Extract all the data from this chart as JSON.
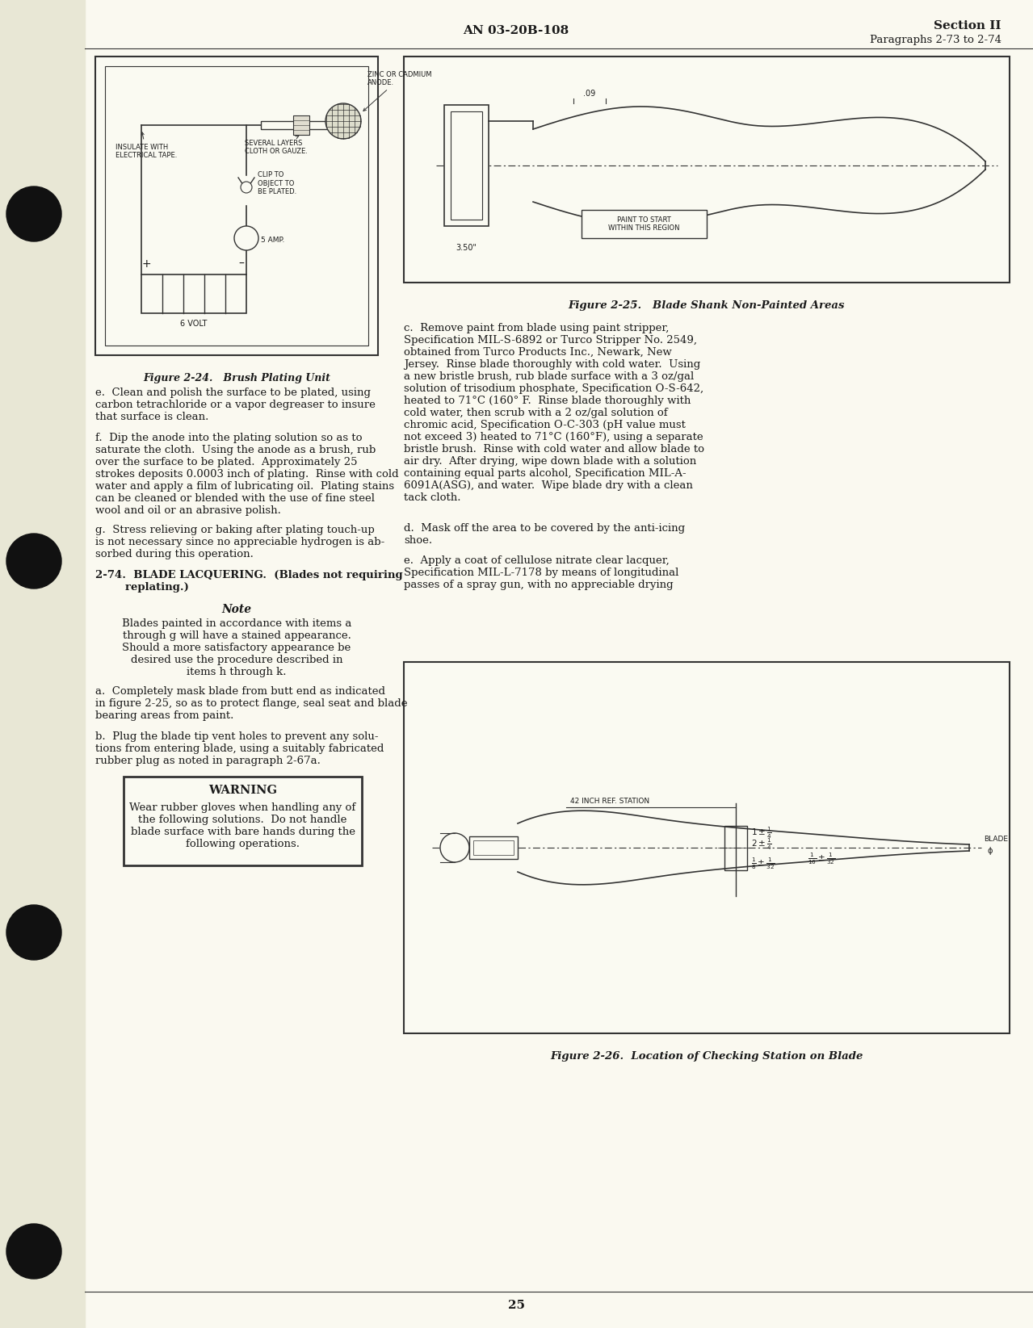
{
  "page_bg": "#FAF9F0",
  "margin_bg": "#E8E7D5",
  "header_center": "AN 03-20B-108",
  "header_right_line1": "Section II",
  "header_right_line2": "Paragraphs 2-73 to 2-74",
  "page_number": "25",
  "fig24_caption": "Figure 2-24.   Brush Plating Unit",
  "fig25_caption": "Figure 2-25.   Blade Shank Non-Painted Areas",
  "fig26_caption": "Figure 2-26.  Location of Checking Station on Blade",
  "text_color": "#1a1a1a",
  "line_color": "#333333"
}
